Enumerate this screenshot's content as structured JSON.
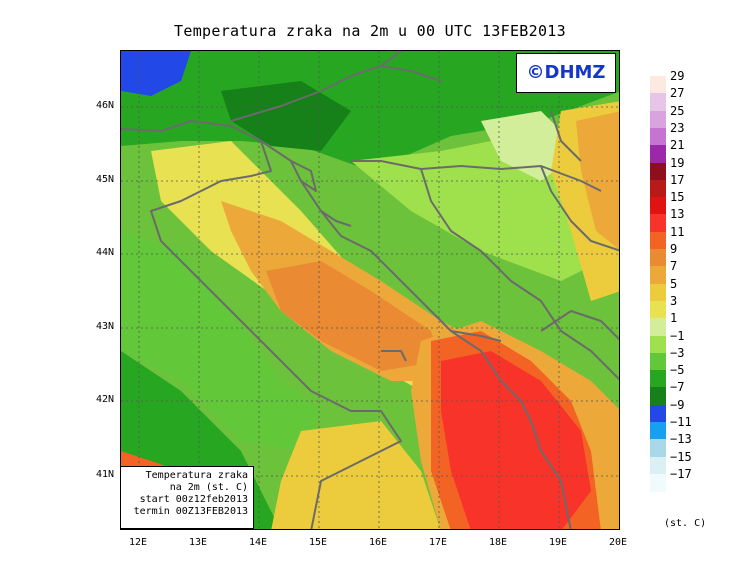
{
  "title": "Temperatura zraka na 2m u 00 UTC 13FEB2013",
  "watermark": "©DHMZ",
  "info_box": {
    "line1": "Temperatura zraka",
    "line2": "na 2m (st. C)",
    "line3": "start 00z12feb2013",
    "line4": "termin 00Z13FEB2013"
  },
  "lat_labels": [
    "46N",
    "45N",
    "44N",
    "43N",
    "42N",
    "41N"
  ],
  "lon_labels": [
    "12E",
    "13E",
    "14E",
    "15E",
    "16E",
    "17E",
    "18E",
    "19E",
    "20E"
  ],
  "legend": {
    "units": "(st. C)",
    "labels": [
      "29",
      "27",
      "25",
      "23",
      "21",
      "19",
      "17",
      "15",
      "13",
      "11",
      "9",
      "7",
      "5",
      "3",
      "1",
      "−1",
      "−3",
      "−5",
      "−7",
      "−9",
      "−11",
      "−13",
      "−15",
      "−17"
    ],
    "colors": [
      "#fde9e0",
      "#e6c5e8",
      "#d9a3e0",
      "#c574d4",
      "#9b28a8",
      "#8f0e1e",
      "#b81a18",
      "#e01212",
      "#f8332a",
      "#f36324",
      "#ea8a33",
      "#eda83a",
      "#eccc3c",
      "#e8e152",
      "#d2ee9a",
      "#9fe14c",
      "#62c83a",
      "#27a622",
      "#168019",
      "#2348e8",
      "#18a0f0",
      "#a9d8ea",
      "#daf0f4",
      "#f1fbfe"
    ]
  },
  "colors": {
    "cold_green": "#27a622",
    "mild_green": "#9fe14c",
    "warm_orange": "#ea8a33",
    "hot_red": "#f8332a",
    "coastline": "#6b6b6b"
  }
}
